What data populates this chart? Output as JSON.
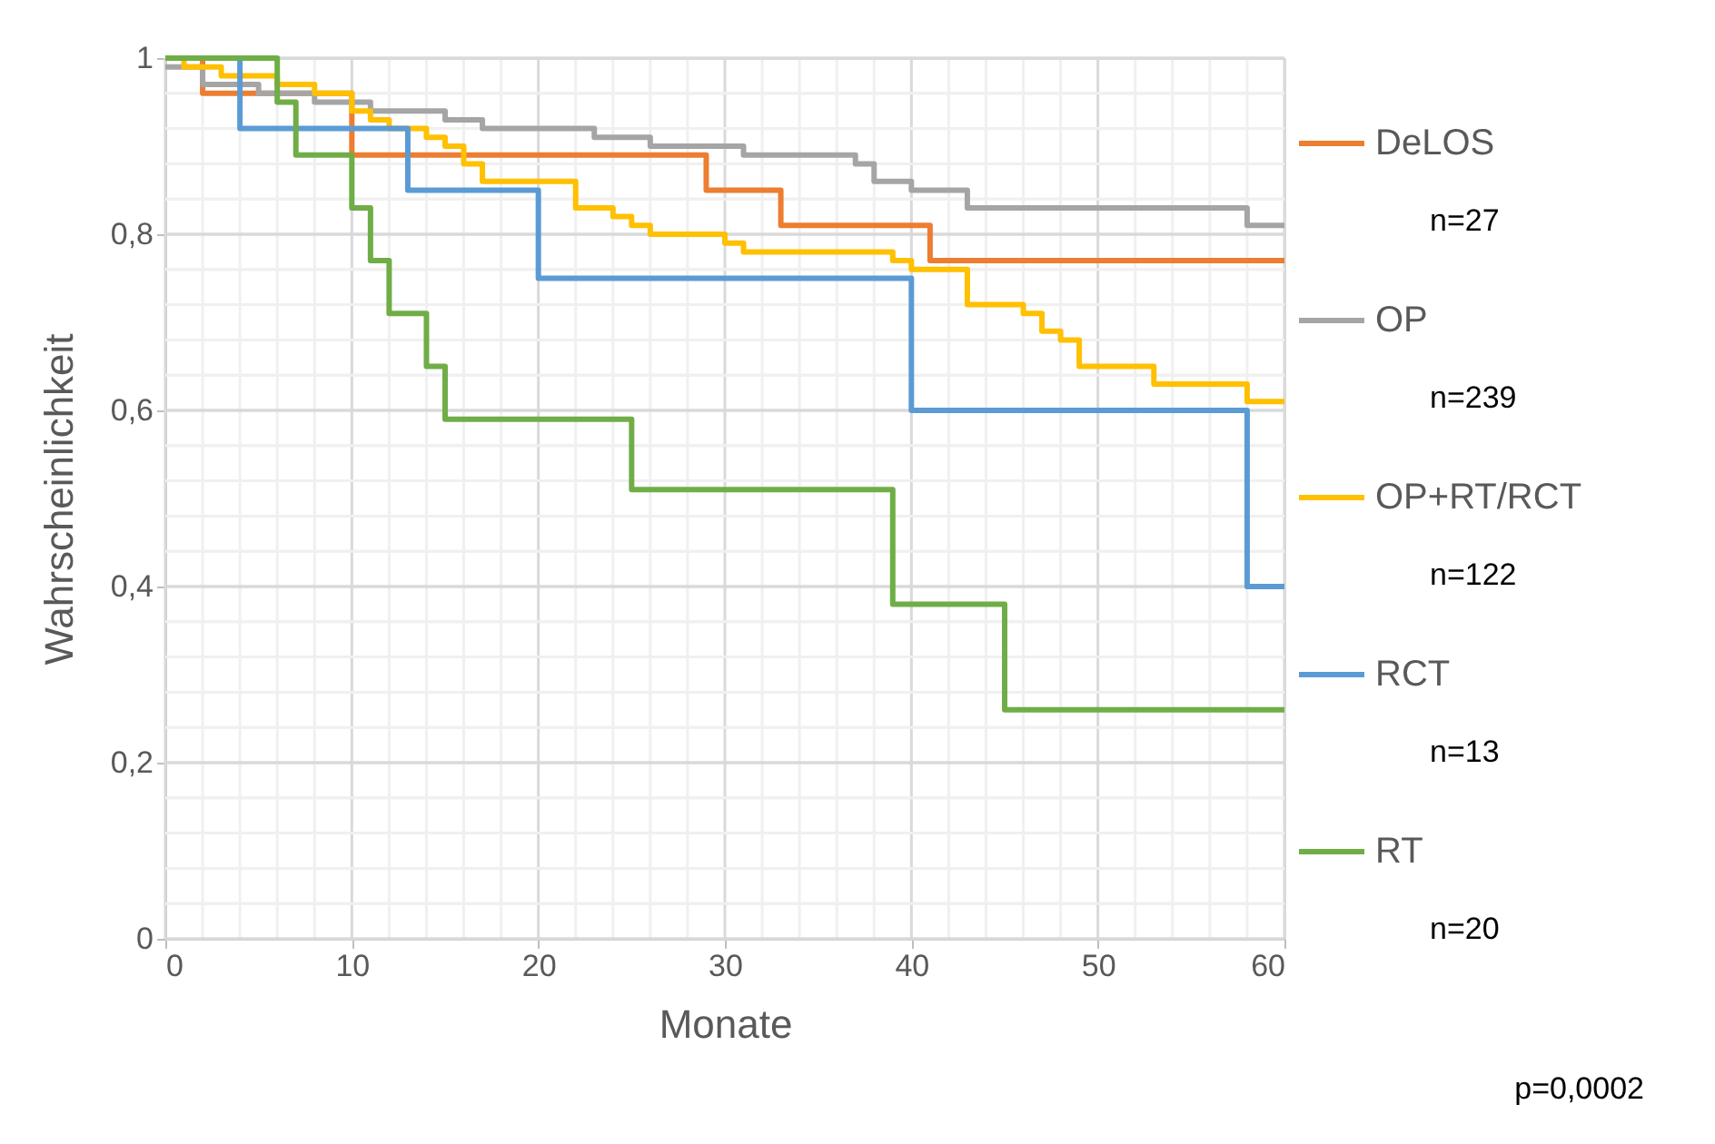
{
  "chart_data": {
    "type": "step",
    "xlabel": "Monate",
    "ylabel": "Wahrscheinlichkeit",
    "xlim": [
      0,
      60
    ],
    "ylim": [
      0,
      1
    ],
    "xticks": [
      0,
      {
        "value": 2,
        "label": null
      },
      {
        "value": 4,
        "label": null
      },
      {
        "value": 6,
        "label": null
      },
      {
        "value": 8,
        "label": null
      },
      10,
      {
        "value": 12,
        "label": null
      },
      {
        "value": 14,
        "label": null
      },
      {
        "value": 16,
        "label": null
      },
      {
        "value": 18,
        "label": null
      },
      20,
      {
        "value": 22,
        "label": null
      },
      {
        "value": 24,
        "label": null
      },
      {
        "value": 26,
        "label": null
      },
      {
        "value": 28,
        "label": null
      },
      30,
      {
        "value": 32,
        "label": null
      },
      {
        "value": 34,
        "label": null
      },
      {
        "value": 36,
        "label": null
      },
      {
        "value": 38,
        "label": null
      },
      40,
      {
        "value": 42,
        "label": null
      },
      {
        "value": 44,
        "label": null
      },
      {
        "value": 46,
        "label": null
      },
      {
        "value": 48,
        "label": null
      },
      50,
      {
        "value": 52,
        "label": null
      },
      {
        "value": 54,
        "label": null
      },
      {
        "value": 56,
        "label": null
      },
      {
        "value": 58,
        "label": null
      },
      60
    ],
    "yticks": [
      0,
      {
        "value": 0.04,
        "label": null
      },
      {
        "value": 0.08,
        "label": null
      },
      {
        "value": 0.12,
        "label": null
      },
      {
        "value": 0.16,
        "label": null
      },
      {
        "value": 0.2,
        "label": "0,2"
      },
      {
        "value": 0.24,
        "label": null
      },
      {
        "value": 0.28,
        "label": null
      },
      {
        "value": 0.32,
        "label": null
      },
      {
        "value": 0.36,
        "label": null
      },
      {
        "value": 0.4,
        "label": "0,4"
      },
      {
        "value": 0.44,
        "label": null
      },
      {
        "value": 0.48,
        "label": null
      },
      {
        "value": 0.52,
        "label": null
      },
      {
        "value": 0.56,
        "label": null
      },
      {
        "value": 0.6,
        "label": "0,6"
      },
      {
        "value": 0.64,
        "label": null
      },
      {
        "value": 0.68,
        "label": null
      },
      {
        "value": 0.72,
        "label": null
      },
      {
        "value": 0.76,
        "label": null
      },
      {
        "value": 0.8,
        "label": "0,8"
      },
      {
        "value": 0.84,
        "label": null
      },
      {
        "value": 0.88,
        "label": null
      },
      {
        "value": 0.92,
        "label": null
      },
      {
        "value": 0.96,
        "label": null
      },
      1
    ],
    "grid": true,
    "legend": "right",
    "line_style": "solid",
    "marker": "none",
    "series": [
      {
        "name": "DeLOS",
        "color": "#ed7d31",
        "x": [
          0,
          2,
          10,
          29,
          33,
          41,
          60
        ],
        "values": [
          1,
          0.96,
          0.89,
          0.85,
          0.81,
          0.77,
          0.77
        ]
      },
      {
        "name": "OP",
        "color": "#a5a5a5",
        "x": [
          0,
          2,
          4,
          5,
          7,
          8,
          10,
          11,
          13,
          15,
          17,
          23,
          26,
          27,
          31,
          37,
          38,
          39,
          40,
          43,
          50,
          58,
          60
        ],
        "values": [
          0.99,
          0.97,
          0.97,
          0.96,
          0.96,
          0.95,
          0.95,
          0.94,
          0.94,
          0.93,
          0.92,
          0.91,
          0.9,
          0.9,
          0.89,
          0.88,
          0.86,
          0.86,
          0.85,
          0.83,
          0.83,
          0.81,
          0.81
        ]
      },
      {
        "name": "OP+RT/RCT",
        "color": "#ffc000",
        "x": [
          0,
          1,
          3,
          5,
          6,
          7,
          8,
          10,
          11,
          12,
          14,
          15,
          16,
          17,
          22,
          24,
          25,
          26,
          30,
          31,
          39,
          40,
          43,
          46,
          47,
          48,
          49,
          53,
          58,
          60
        ],
        "values": [
          1,
          0.99,
          0.98,
          0.98,
          0.97,
          0.97,
          0.96,
          0.94,
          0.93,
          0.92,
          0.91,
          0.9,
          0.88,
          0.86,
          0.83,
          0.82,
          0.81,
          0.8,
          0.79,
          0.78,
          0.77,
          0.76,
          0.72,
          0.71,
          0.69,
          0.68,
          0.65,
          0.63,
          0.61,
          0.61
        ]
      },
      {
        "name": "RCT",
        "color": "#5b9bd5",
        "x": [
          0,
          4,
          13,
          20,
          40,
          58,
          60
        ],
        "values": [
          1,
          0.92,
          0.85,
          0.75,
          0.6,
          0.4,
          0.4
        ]
      },
      {
        "name": "RT",
        "color": "#70ad47",
        "x": [
          0,
          6,
          7,
          10,
          11,
          12,
          14,
          15,
          25,
          39,
          45,
          60
        ],
        "values": [
          1,
          0.95,
          0.89,
          0.83,
          0.77,
          0.71,
          0.65,
          0.59,
          0.51,
          0.38,
          0.26,
          0.26
        ]
      }
    ],
    "annotations": [
      "n=27",
      "n=239",
      "n=122",
      "n=13",
      "n=20",
      "p=0,0002"
    ]
  }
}
